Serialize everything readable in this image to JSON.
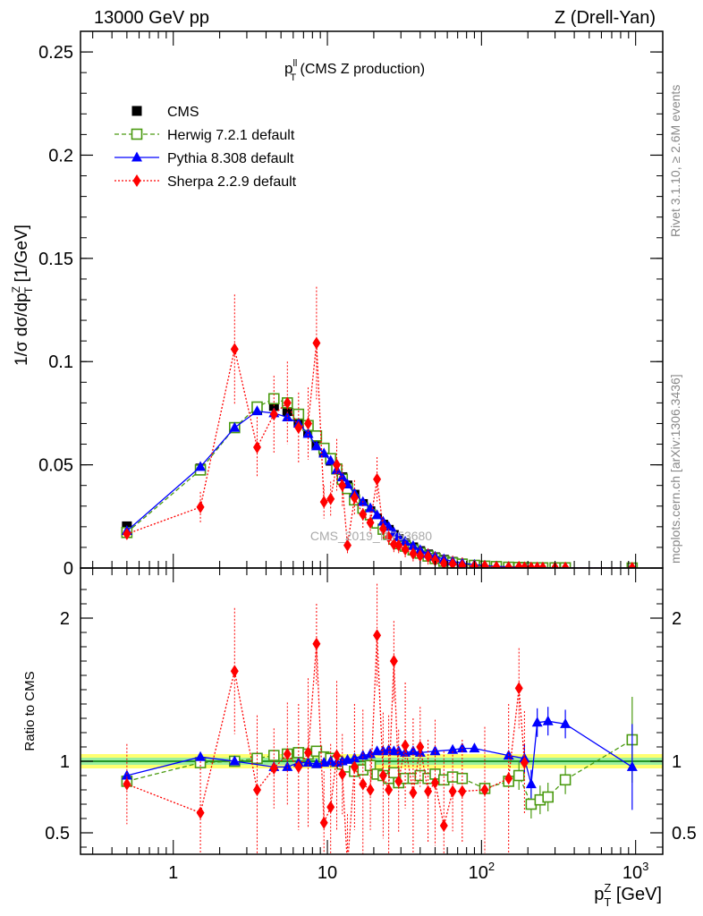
{
  "header": {
    "left": "13000 GeV pp",
    "right": "Z (Drell-Yan)"
  },
  "side_labels": {
    "rivet": "Rivet 3.1.10, ≥ 2.6M events",
    "mcplots": "mcplots.cern.ch [arXiv:1306.3436]"
  },
  "chart_data": [
    {
      "type": "scatter",
      "panel": "main",
      "title_main": "p",
      "title_sup": "ll",
      "title_sub": "T",
      "title_rest": " (CMS Z production)",
      "watermark": "CMS_2019_I1753680",
      "ylabel": "1/σ dσ/dp",
      "ylabel_sup": "Z",
      "ylabel_sub": "T",
      "ylabel_unit": " [1/GeV]",
      "xscale": "log",
      "xlim": [
        0.25,
        1500
      ],
      "ylim": [
        0,
        0.26
      ],
      "yticks": [
        "0",
        "0.05",
        "0.1",
        "0.15",
        "0.2",
        "0.25"
      ],
      "legend_position": "top-left",
      "x": [
        0.5,
        1.5,
        2.5,
        3.5,
        4.5,
        5.5,
        6.5,
        7.5,
        8.5,
        9.5,
        10.5,
        11.5,
        12.5,
        13.5,
        15,
        17,
        19,
        21,
        23,
        25,
        27,
        29,
        32,
        36,
        40,
        45,
        50,
        57,
        65,
        75,
        90,
        105,
        125,
        150,
        175,
        190,
        210,
        230,
        250,
        300,
        350,
        950
      ],
      "series": [
        {
          "name": "CMS",
          "color": "#000000",
          "marker": "square",
          "values": [
            0.0202,
            0.0482,
            0.068,
            0.0768,
            0.0785,
            0.076,
            0.071,
            0.066,
            0.06,
            0.056,
            0.052,
            0.048,
            0.044,
            0.04,
            0.0355,
            0.031,
            0.0275,
            0.024,
            0.021,
            0.0185,
            0.016,
            0.014,
            0.012,
            0.01,
            0.0082,
            0.0066,
            0.0052,
            0.004,
            0.003,
            0.0022,
            0.0015,
            0.0011,
            0.0008,
            0.0005,
            0.0004,
            0.0003,
            0.0002,
            0.0002,
            0.0002,
            0.0001,
            0.0001,
            0.0
          ]
        },
        {
          "name": "Herwig 7.2.1 default",
          "color": "#4a9a10",
          "marker": "open-square",
          "line": "dashed",
          "values": [
            0.0172,
            0.0475,
            0.068,
            0.078,
            0.082,
            0.08,
            0.0745,
            0.069,
            0.064,
            0.058,
            0.053,
            0.048,
            0.043,
            0.0385,
            0.033,
            0.029,
            0.0258,
            0.0218,
            0.0188,
            0.0163,
            0.014,
            0.0118,
            0.0106,
            0.0088,
            0.0072,
            0.0058,
            0.0046,
            0.0033,
            0.0025,
            0.0019,
            0.0013,
            0.0009,
            0.0007,
            0.0004,
            0.0003,
            0.0002,
            0.0001,
            0.0001,
            0.0001,
            0.0001,
            0.0001,
            0.0
          ]
        },
        {
          "name": "Pythia 8.308 default",
          "color": "#0000ff",
          "marker": "triangle",
          "line": "solid",
          "values": [
            0.018,
            0.049,
            0.068,
            0.076,
            0.075,
            0.073,
            0.07,
            0.065,
            0.059,
            0.0555,
            0.052,
            0.0475,
            0.044,
            0.0405,
            0.0362,
            0.032,
            0.029,
            0.0256,
            0.0225,
            0.02,
            0.0172,
            0.015,
            0.0128,
            0.0107,
            0.0087,
            0.0069,
            0.0056,
            0.0043,
            0.0032,
            0.0024,
            0.0016,
            0.0012,
            0.0008,
            0.0006,
            0.0004,
            0.0003,
            0.0002,
            0.0002,
            0.0002,
            0.0001,
            0.0001,
            0.0
          ]
        },
        {
          "name": "Sherpa 2.2.9 default",
          "color": "#ff0000",
          "marker": "diamond",
          "line": "dotted",
          "values": [
            0.0165,
            0.0295,
            0.106,
            0.0585,
            0.0745,
            0.08,
            0.068,
            0.07,
            0.109,
            0.032,
            0.0335,
            0.05,
            0.04,
            0.011,
            0.034,
            0.026,
            0.022,
            0.043,
            0.019,
            0.015,
            0.0115,
            0.011,
            0.009,
            0.007,
            0.006,
            0.0055,
            0.0038,
            0.0022,
            0.002,
            0.0012,
            0.0009,
            0.0009,
            0.0005,
            0.0003,
            0.0005,
            0.0002,
            0.0001,
            0.0001,
            0.0001,
            0.0001,
            0.0001,
            0.0
          ]
        }
      ]
    },
    {
      "type": "scatter",
      "panel": "ratio",
      "ylabel": "Ratio to CMS",
      "xlabel": "p",
      "xlabel_sup": "Z",
      "xlabel_sub": "T",
      "xlabel_unit": " [GeV]",
      "xscale": "log",
      "xlim": [
        0.25,
        1500
      ],
      "ylim": [
        0.35,
        2.35
      ],
      "yticks": [
        "0.5",
        "1",
        "2"
      ],
      "xticks": [
        {
          "base": "1",
          "exp": ""
        },
        {
          "base": "10",
          "exp": ""
        },
        {
          "base": "10",
          "exp": "2"
        },
        {
          "base": "10",
          "exp": "3"
        }
      ],
      "band_color_inner": "#9af0a0",
      "band_color_outer": "#ffff70",
      "reference_color": "#007a00",
      "series": [
        {
          "name": "Herwig 7.2.1 default",
          "x": [
            0.5,
            1.5,
            2.5,
            3.5,
            4.5,
            5.5,
            6.5,
            7.5,
            8.5,
            9.5,
            10.5,
            11.5,
            12.5,
            13.5,
            15,
            17,
            19,
            21,
            23,
            25,
            27,
            29,
            32,
            36,
            40,
            45,
            50,
            57,
            65,
            75,
            105,
            150,
            175,
            210,
            240,
            270,
            350,
            950
          ],
          "values": [
            0.86,
            0.99,
            1.0,
            1.02,
            1.04,
            1.05,
            1.06,
            1.05,
            1.07,
            1.03,
            1.02,
            1.0,
            0.98,
            0.96,
            0.93,
            0.94,
            0.97,
            0.91,
            0.9,
            0.88,
            0.92,
            0.85,
            0.88,
            0.88,
            0.9,
            0.88,
            0.91,
            0.87,
            0.89,
            0.88,
            0.81,
            0.86,
            0.9,
            0.7,
            0.73,
            0.75,
            0.87,
            1.15
          ]
        },
        {
          "name": "Pythia 8.308 default",
          "x": [
            0.5,
            1.5,
            2.5,
            4.5,
            5.5,
            6.5,
            7.5,
            8.5,
            9.5,
            10.5,
            11.5,
            12.5,
            13.5,
            15,
            17,
            19,
            21,
            23,
            25,
            27,
            29,
            32,
            36,
            40,
            50,
            65,
            75,
            90,
            150,
            190,
            210,
            230,
            270,
            350,
            950
          ],
          "values": [
            0.9,
            1.03,
            1.0,
            0.96,
            0.96,
            0.99,
            0.99,
            0.98,
            0.99,
            1.0,
            0.99,
            1.0,
            1.01,
            1.02,
            1.04,
            1.05,
            1.07,
            1.07,
            1.08,
            1.07,
            1.07,
            1.06,
            1.07,
            1.06,
            1.07,
            1.08,
            1.09,
            1.09,
            1.04,
            1.02,
            0.84,
            1.27,
            1.28,
            1.26,
            0.96
          ]
        },
        {
          "name": "Sherpa 2.2.9 default",
          "x": [
            0.5,
            1.5,
            2.5,
            3.5,
            4.5,
            5.5,
            6.5,
            7.5,
            8.5,
            9.5,
            10.5,
            11.5,
            12.5,
            13.5,
            15,
            17,
            19,
            21,
            23,
            25,
            27,
            29,
            32,
            36,
            40,
            45,
            50,
            57,
            65,
            75,
            105,
            150,
            175,
            190
          ],
          "values": [
            0.84,
            0.64,
            1.63,
            0.8,
            0.95,
            1.05,
            0.96,
            1.06,
            1.82,
            0.57,
            0.68,
            1.04,
            0.91,
            0.27,
            0.96,
            0.84,
            0.8,
            1.88,
            0.9,
            0.8,
            1.7,
            0.86,
            1.11,
            0.78,
            1.1,
            0.79,
            0.85,
            0.55,
            0.79,
            0.79,
            0.8,
            0.88,
            1.51,
            0.99
          ]
        }
      ]
    }
  ]
}
